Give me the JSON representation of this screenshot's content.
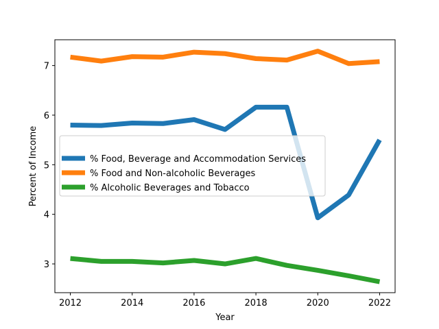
{
  "chart_data": {
    "type": "line",
    "title": "",
    "xlabel": "Year",
    "ylabel": "Percent of Income",
    "x": [
      2012,
      2013,
      2014,
      2015,
      2016,
      2017,
      2018,
      2019,
      2020,
      2021,
      2022
    ],
    "xlim": [
      2011.5,
      2022.5
    ],
    "ylim": [
      2.42,
      7.52
    ],
    "x_ticks": [
      2012,
      2014,
      2016,
      2018,
      2020,
      2022
    ],
    "y_ticks": [
      3,
      4,
      5,
      6,
      7
    ],
    "grid": false,
    "legend_placement": "center-left",
    "series": [
      {
        "name": "% Food, Beverage and Accommodation Services",
        "color": "#1f77b4",
        "values": [
          5.8,
          5.79,
          5.84,
          5.83,
          5.91,
          5.71,
          6.16,
          6.16,
          3.93,
          4.39,
          5.5
        ]
      },
      {
        "name": "% Food and Non-alcoholic Beverages",
        "color": "#ff7f0e",
        "values": [
          7.17,
          7.09,
          7.18,
          7.17,
          7.27,
          7.24,
          7.14,
          7.11,
          7.29,
          7.04,
          7.08
        ]
      },
      {
        "name": "% Alcoholic Beverages and Tobacco",
        "color": "#2ca02c",
        "values": [
          3.11,
          3.05,
          3.05,
          3.02,
          3.07,
          3.0,
          3.11,
          2.97,
          2.87,
          2.76,
          2.64
        ]
      }
    ]
  }
}
